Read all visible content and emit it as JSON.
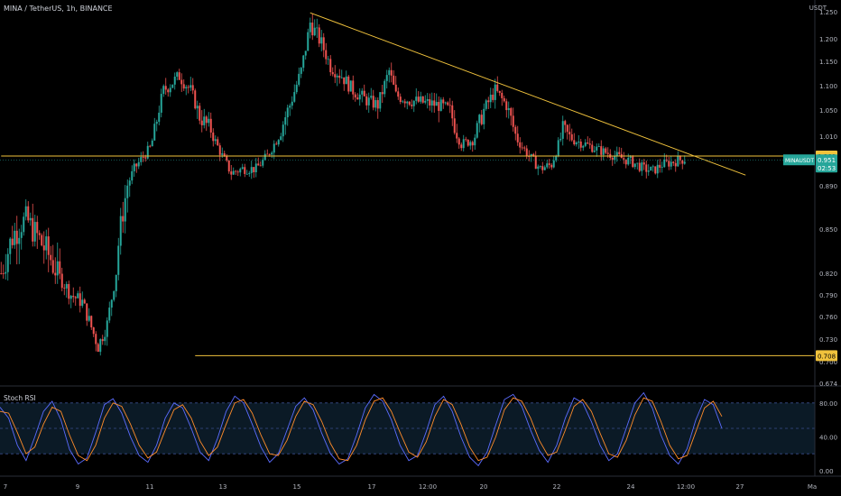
{
  "header": {
    "symbol_line": "MINA / TetherUS, 1h, BINANCE",
    "unit": "USDT"
  },
  "indicator": {
    "title": "Stoch RSI"
  },
  "colors": {
    "up": "#26a69a",
    "down": "#ef5350",
    "trend": "#f0c23c",
    "k": "#5b6cff",
    "d": "#ff8c2a"
  },
  "chart_data": [
    {
      "type": "candlestick",
      "title": "MINA / TetherUS, 1h, BINANCE",
      "ylabel": "USDT",
      "y_ticks": [
        "1.250",
        "1.200",
        "1.150",
        "1.100",
        "1.050",
        "1.010",
        "0.960",
        "0.890",
        "0.850",
        "0.820",
        "0.790",
        "0.760",
        "0.730",
        "0.700",
        "0.674"
      ],
      "x_ticks": [
        "7",
        "9",
        "11",
        "13",
        "15",
        "17",
        "12:00",
        "20",
        "22",
        "24",
        "12:00",
        "27",
        "Ma"
      ],
      "ylim": [
        0.674,
        1.275
      ],
      "price_path": [
        {
          "t": 0,
          "p": 0.82
        },
        {
          "t": 5,
          "p": 0.845
        },
        {
          "t": 11,
          "p": 0.86
        },
        {
          "t": 16,
          "p": 0.845
        },
        {
          "t": 22,
          "p": 0.83
        },
        {
          "t": 27,
          "p": 0.81
        },
        {
          "t": 31,
          "p": 0.79
        },
        {
          "t": 36,
          "p": 0.78
        },
        {
          "t": 43,
          "p": 0.72
        },
        {
          "t": 47,
          "p": 0.75
        },
        {
          "t": 52,
          "p": 0.84
        },
        {
          "t": 59,
          "p": 0.93
        },
        {
          "t": 66,
          "p": 0.98
        },
        {
          "t": 72,
          "p": 1.09
        },
        {
          "t": 79,
          "p": 1.12
        },
        {
          "t": 84,
          "p": 1.09
        },
        {
          "t": 88,
          "p": 1.04
        },
        {
          "t": 93,
          "p": 1.02
        },
        {
          "t": 98,
          "p": 0.96
        },
        {
          "t": 102,
          "p": 0.92
        },
        {
          "t": 107,
          "p": 0.93
        },
        {
          "t": 113,
          "p": 0.93
        },
        {
          "t": 118,
          "p": 0.96
        },
        {
          "t": 124,
          "p": 1.02
        },
        {
          "t": 128,
          "p": 1.06
        },
        {
          "t": 133,
          "p": 1.13
        },
        {
          "t": 137,
          "p": 1.23
        },
        {
          "t": 142,
          "p": 1.19
        },
        {
          "t": 146,
          "p": 1.14
        },
        {
          "t": 151,
          "p": 1.12
        },
        {
          "t": 156,
          "p": 1.09
        },
        {
          "t": 162,
          "p": 1.07
        },
        {
          "t": 167,
          "p": 1.06
        },
        {
          "t": 172,
          "p": 1.13
        },
        {
          "t": 175,
          "p": 1.08
        },
        {
          "t": 181,
          "p": 1.07
        },
        {
          "t": 188,
          "p": 1.065
        },
        {
          "t": 194,
          "p": 1.06
        },
        {
          "t": 199,
          "p": 1.05
        },
        {
          "t": 204,
          "p": 0.99
        },
        {
          "t": 209,
          "p": 1.0
        },
        {
          "t": 214,
          "p": 1.05
        },
        {
          "t": 219,
          "p": 1.09
        },
        {
          "t": 224,
          "p": 1.06
        },
        {
          "t": 229,
          "p": 1.0
        },
        {
          "t": 234,
          "p": 0.96
        },
        {
          "t": 239,
          "p": 0.93
        },
        {
          "t": 244,
          "p": 0.94
        },
        {
          "t": 249,
          "p": 1.02
        },
        {
          "t": 254,
          "p": 1.0
        },
        {
          "t": 259,
          "p": 0.99
        },
        {
          "t": 265,
          "p": 0.975
        },
        {
          "t": 270,
          "p": 0.965
        },
        {
          "t": 275,
          "p": 0.955
        },
        {
          "t": 280,
          "p": 0.945
        },
        {
          "t": 285,
          "p": 0.93
        },
        {
          "t": 289,
          "p": 0.925
        },
        {
          "t": 293,
          "p": 0.94
        },
        {
          "t": 299,
          "p": 0.948
        },
        {
          "t": 303,
          "p": 0.953
        }
      ],
      "price_path_note": "",
      "trendline": {
        "from": {
          "t": 137,
          "p": 1.248
        },
        "to": {
          "t": 330,
          "p": 0.915
        }
      },
      "horizontal_levels": [
        {
          "price": 0.96,
          "label": "0.960",
          "start_t": 0
        },
        {
          "price": 0.708,
          "label": "0.708",
          "start_t": 86
        }
      ],
      "last_price": {
        "symbol": "MINAUSDT",
        "price": "0.951",
        "countdown": "02:53"
      }
    },
    {
      "type": "line",
      "title": "Stoch RSI",
      "y_ticks": [
        "80.00",
        "40.00",
        "0.00"
      ],
      "ylim": [
        0,
        100
      ],
      "bands": [
        80,
        50,
        20
      ],
      "series": [
        {
          "name": "",
          "values": [
            75,
            62,
            30,
            12,
            40,
            70,
            82,
            60,
            25,
            8,
            15,
            45,
            78,
            85,
            68,
            40,
            18,
            10,
            30,
            62,
            80,
            74,
            50,
            22,
            12,
            38,
            70,
            88,
            80,
            55,
            28,
            10,
            20,
            48,
            76,
            86,
            72,
            44,
            20,
            8,
            14,
            42,
            74,
            90,
            82,
            60,
            30,
            12,
            18,
            46,
            78,
            88,
            70,
            40,
            16,
            6,
            22,
            54,
            84,
            90,
            76,
            48,
            24,
            10,
            30,
            62,
            86,
            80,
            58,
            30,
            12,
            20,
            50,
            80,
            92,
            74,
            42,
            18,
            8,
            26,
            60,
            84,
            78,
            50
          ]
        },
        {
          "name": "",
          "values": [
            70,
            68,
            45,
            20,
            28,
            55,
            75,
            70,
            42,
            18,
            12,
            30,
            62,
            80,
            76,
            55,
            30,
            15,
            22,
            48,
            72,
            78,
            62,
            35,
            18,
            28,
            55,
            80,
            84,
            68,
            42,
            20,
            18,
            36,
            64,
            82,
            78,
            58,
            32,
            14,
            12,
            30,
            60,
            82,
            86,
            70,
            45,
            22,
            16,
            34,
            64,
            84,
            78,
            55,
            28,
            12,
            16,
            40,
            72,
            86,
            82,
            62,
            36,
            18,
            22,
            48,
            76,
            84,
            70,
            44,
            20,
            16,
            36,
            66,
            86,
            82,
            58,
            30,
            14,
            18,
            46,
            74,
            82,
            64
          ]
        }
      ]
    }
  ]
}
